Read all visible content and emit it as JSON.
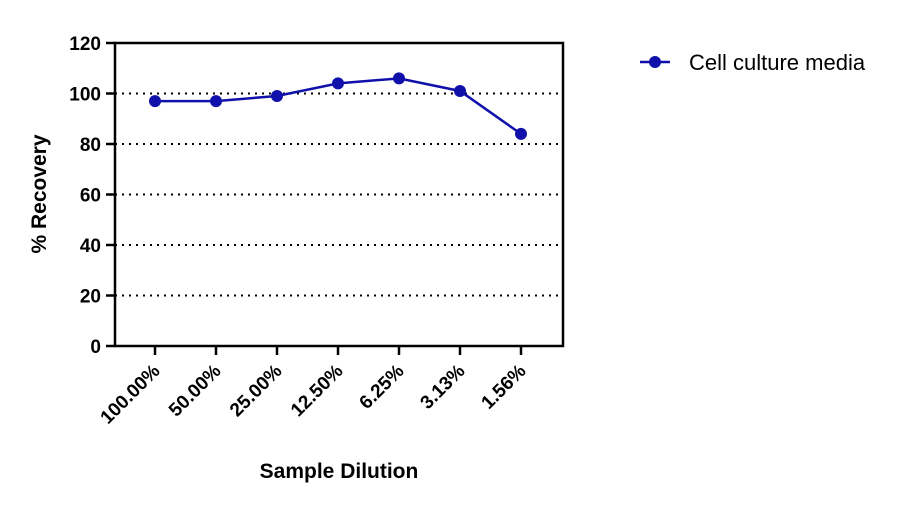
{
  "chart_data": {
    "type": "line",
    "categories": [
      "100.00%",
      "50.00%",
      "25.00%",
      "12.50%",
      "6.25%",
      "3.13%",
      "1.56%"
    ],
    "series": [
      {
        "name": "Cell culture media",
        "values": [
          97,
          97,
          99,
          104,
          106,
          101,
          84
        ],
        "color": "#1010aa"
      }
    ],
    "xlabel": "Sample Dilution",
    "ylabel": "% Recovery",
    "ylim": [
      0,
      120
    ],
    "yticks": [
      0,
      20,
      40,
      60,
      80,
      100,
      120
    ],
    "grid": "horizontal dotted",
    "legend_position": "top-right"
  }
}
